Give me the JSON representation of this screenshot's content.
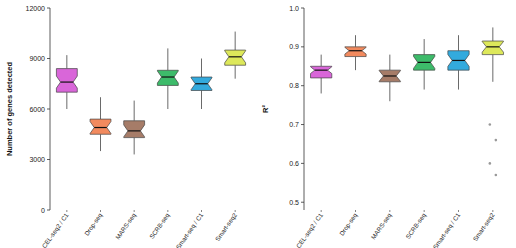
{
  "chart_data": [
    {
      "type": "box",
      "y_label": "Number of genes detected",
      "categories": [
        "CEL-seq2 / C1",
        "Drop-seq",
        "MARS-seq",
        "SCRB-seq",
        "Smart-seq / C1",
        "Smart-seq2"
      ],
      "colors": [
        "#d966d9",
        "#f28a5e",
        "#a67c68",
        "#3dbb6a",
        "#33aadd",
        "#dde85a"
      ],
      "stats": {
        "min": [
          6000,
          3500,
          3300,
          6000,
          6000,
          7800
        ],
        "q1": [
          7000,
          4500,
          4300,
          7400,
          7100,
          8600
        ],
        "median": [
          7600,
          4900,
          4700,
          7900,
          7500,
          9100
        ],
        "q3": [
          8400,
          5400,
          5300,
          8300,
          7900,
          9500
        ],
        "max": [
          9200,
          6700,
          6500,
          9600,
          9000,
          10600
        ]
      },
      "ylim": [
        0,
        12000
      ],
      "yticks": [
        0,
        3000,
        6000,
        9000,
        12000
      ]
    },
    {
      "type": "box",
      "y_label": "R²",
      "categories": [
        "CEL-seq2 / C1",
        "Drop-seq",
        "MARS-seq",
        "SCRB-seq",
        "Smart-seq / C1",
        "Smart-seq2"
      ],
      "colors": [
        "#d966d9",
        "#f28a5e",
        "#a67c68",
        "#3dbb6a",
        "#33aadd",
        "#dde85a"
      ],
      "stats": {
        "min": [
          0.78,
          0.84,
          0.76,
          0.79,
          0.79,
          0.81
        ],
        "q1": [
          0.82,
          0.875,
          0.81,
          0.84,
          0.84,
          0.88
        ],
        "median": [
          0.84,
          0.89,
          0.825,
          0.86,
          0.865,
          0.9
        ],
        "q3": [
          0.85,
          0.9,
          0.84,
          0.88,
          0.89,
          0.915
        ],
        "max": [
          0.88,
          0.93,
          0.88,
          0.92,
          0.93,
          0.95
        ]
      },
      "outliers": [
        [],
        [],
        [],
        [],
        [],
        [
          0.7,
          0.66,
          0.6,
          0.57
        ]
      ],
      "ylim": [
        0.48,
        1.0
      ],
      "yticks": [
        0.5,
        0.6,
        0.7,
        0.8,
        0.9,
        {
          "value": 1.0,
          "label": "1.0"
        }
      ]
    }
  ]
}
